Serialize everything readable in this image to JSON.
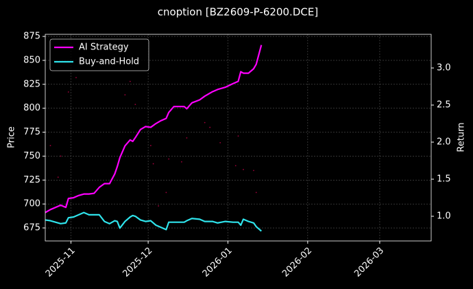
{
  "chart_data": {
    "type": "line",
    "title": "cnoption [BZ2609-P-6200.DCE]",
    "ylabel": "Price",
    "y2label": "Return",
    "x": [
      "2025-10-22",
      "2025-10-24",
      "2025-10-26",
      "2025-10-28",
      "2025-10-30",
      "2025-10-31",
      "2025-11-02",
      "2025-11-04",
      "2025-11-06",
      "2025-11-08",
      "2025-11-10",
      "2025-11-12",
      "2025-11-14",
      "2025-11-16",
      "2025-11-18",
      "2025-11-19",
      "2025-11-20",
      "2025-11-22",
      "2025-11-24",
      "2025-11-25",
      "2025-11-26",
      "2025-11-28",
      "2025-11-30",
      "2025-12-02",
      "2025-12-04",
      "2025-12-06",
      "2025-12-08",
      "2025-12-09",
      "2025-12-11",
      "2025-12-15",
      "2025-12-16",
      "2025-12-18",
      "2025-12-21",
      "2025-12-23",
      "2025-12-26",
      "2025-12-28",
      "2025-12-31",
      "2026-01-03",
      "2026-01-05",
      "2026-01-06",
      "2026-01-07",
      "2026-01-09",
      "2026-01-11",
      "2026-01-12",
      "2026-01-14"
    ],
    "series": [
      {
        "name": "AI Strategy",
        "color": "#ff00ff",
        "axis": "y2",
        "values": [
          1.05,
          1.09,
          1.12,
          1.15,
          1.12,
          1.24,
          1.25,
          1.28,
          1.3,
          1.3,
          1.31,
          1.39,
          1.44,
          1.44,
          1.57,
          1.67,
          1.79,
          1.95,
          2.03,
          2.01,
          2.06,
          2.17,
          2.21,
          2.2,
          2.25,
          2.29,
          2.32,
          2.4,
          2.48,
          2.48,
          2.45,
          2.53,
          2.57,
          2.62,
          2.68,
          2.71,
          2.74,
          2.79,
          2.82,
          2.95,
          2.93,
          2.93,
          2.99,
          3.05,
          3.31
        ]
      },
      {
        "name": "Buy-and-Hold",
        "color": "#2fe4ec",
        "axis": "y2",
        "values": [
          0.95,
          0.94,
          0.92,
          0.9,
          0.91,
          0.98,
          0.99,
          1.02,
          1.05,
          1.02,
          1.02,
          1.02,
          0.93,
          0.9,
          0.94,
          0.93,
          0.84,
          0.93,
          0.99,
          1.01,
          1.0,
          0.95,
          0.93,
          0.94,
          0.88,
          0.85,
          0.82,
          0.92,
          0.92,
          0.92,
          0.94,
          0.97,
          0.96,
          0.93,
          0.93,
          0.91,
          0.93,
          0.92,
          0.92,
          0.88,
          0.96,
          0.93,
          0.91,
          0.86,
          0.8
        ]
      }
    ],
    "price_points": {
      "color": "#a0003a",
      "x": [
        "2025-10-24",
        "2025-10-27",
        "2025-10-28",
        "2025-10-31",
        "2025-11-03",
        "2025-11-22",
        "2025-11-24",
        "2025-11-26",
        "2025-12-02",
        "2025-12-03",
        "2025-12-05",
        "2025-12-08",
        "2025-12-09",
        "2025-12-14",
        "2025-12-16",
        "2025-12-23",
        "2025-12-25",
        "2025-12-29",
        "2026-01-04",
        "2026-01-05",
        "2026-01-07",
        "2026-01-11",
        "2026-01-12"
      ],
      "values": [
        761,
        728,
        750,
        817,
        832,
        814,
        828,
        804,
        761,
        742,
        698,
        712,
        747,
        744,
        769,
        785,
        780,
        764,
        740,
        771,
        736,
        735,
        712
      ]
    },
    "xlim": [
      "2025-10-22",
      "2026-03-21"
    ],
    "xticks": [
      {
        "value": "2025-11-01",
        "label": "2025-11"
      },
      {
        "value": "2025-12-01",
        "label": "2025-12"
      },
      {
        "value": "2026-01-01",
        "label": "2026-01"
      },
      {
        "value": "2026-02-01",
        "label": "2026-02"
      },
      {
        "value": "2026-03-01",
        "label": "2026-03"
      }
    ],
    "ylim": [
      661.4,
      877.2
    ],
    "yticks": [
      675,
      700,
      725,
      750,
      775,
      800,
      825,
      850,
      875
    ],
    "y2lim": [
      0.667,
      3.454
    ],
    "y2ticks": [
      {
        "value": 1,
        "label": "1.0"
      },
      {
        "value": 1.5,
        "label": "1.5"
      },
      {
        "value": 2,
        "label": "2.0"
      },
      {
        "value": 2.5,
        "label": "2.5"
      },
      {
        "value": 3,
        "label": "3.0"
      }
    ],
    "grid": true,
    "legend": "upper left"
  }
}
